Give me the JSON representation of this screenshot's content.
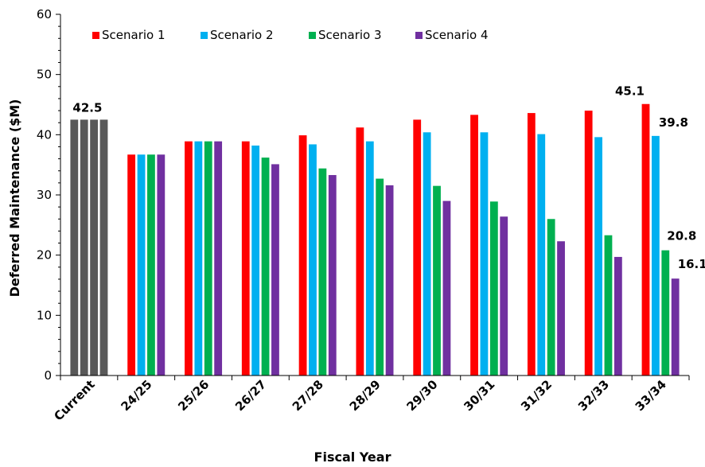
{
  "chart_data": {
    "type": "bar",
    "xlabel": "Fiscal Year",
    "ylabel": "Deferred Maintenance ($M)",
    "ylim": [
      0,
      60
    ],
    "yticks": [
      0,
      10,
      20,
      30,
      40,
      50,
      60
    ],
    "grid": false,
    "legend_position": "top-left",
    "current": {
      "category": "Current",
      "value": 42.5,
      "label": "42.5",
      "color": "#595959"
    },
    "categories": [
      "24/25",
      "25/26",
      "26/27",
      "27/28",
      "28/29",
      "29/30",
      "30/31",
      "31/32",
      "32/33",
      "33/34"
    ],
    "series": [
      {
        "name": "Scenario 1",
        "color": "#ff0000",
        "values": [
          36.7,
          38.9,
          38.9,
          39.9,
          41.2,
          42.5,
          43.3,
          43.6,
          44.0,
          45.1
        ]
      },
      {
        "name": "Scenario 2",
        "color": "#00b0f0",
        "values": [
          36.7,
          38.9,
          38.2,
          38.4,
          38.9,
          40.4,
          40.4,
          40.1,
          39.6,
          39.8
        ]
      },
      {
        "name": "Scenario 3",
        "color": "#00b050",
        "values": [
          36.7,
          38.9,
          36.2,
          34.4,
          32.7,
          31.5,
          28.9,
          26.0,
          23.3,
          20.8
        ]
      },
      {
        "name": "Scenario 4",
        "color": "#7030a0",
        "values": [
          36.7,
          38.9,
          35.1,
          33.3,
          31.6,
          29.0,
          26.4,
          22.3,
          19.7,
          16.1
        ]
      }
    ],
    "data_labels": [
      {
        "series": 0,
        "category": "33/34",
        "text": "45.1"
      },
      {
        "series": 1,
        "category": "33/34",
        "text": "39.8"
      },
      {
        "series": 2,
        "category": "33/34",
        "text": "20.8"
      },
      {
        "series": 3,
        "category": "33/34",
        "text": "16.1"
      }
    ]
  }
}
